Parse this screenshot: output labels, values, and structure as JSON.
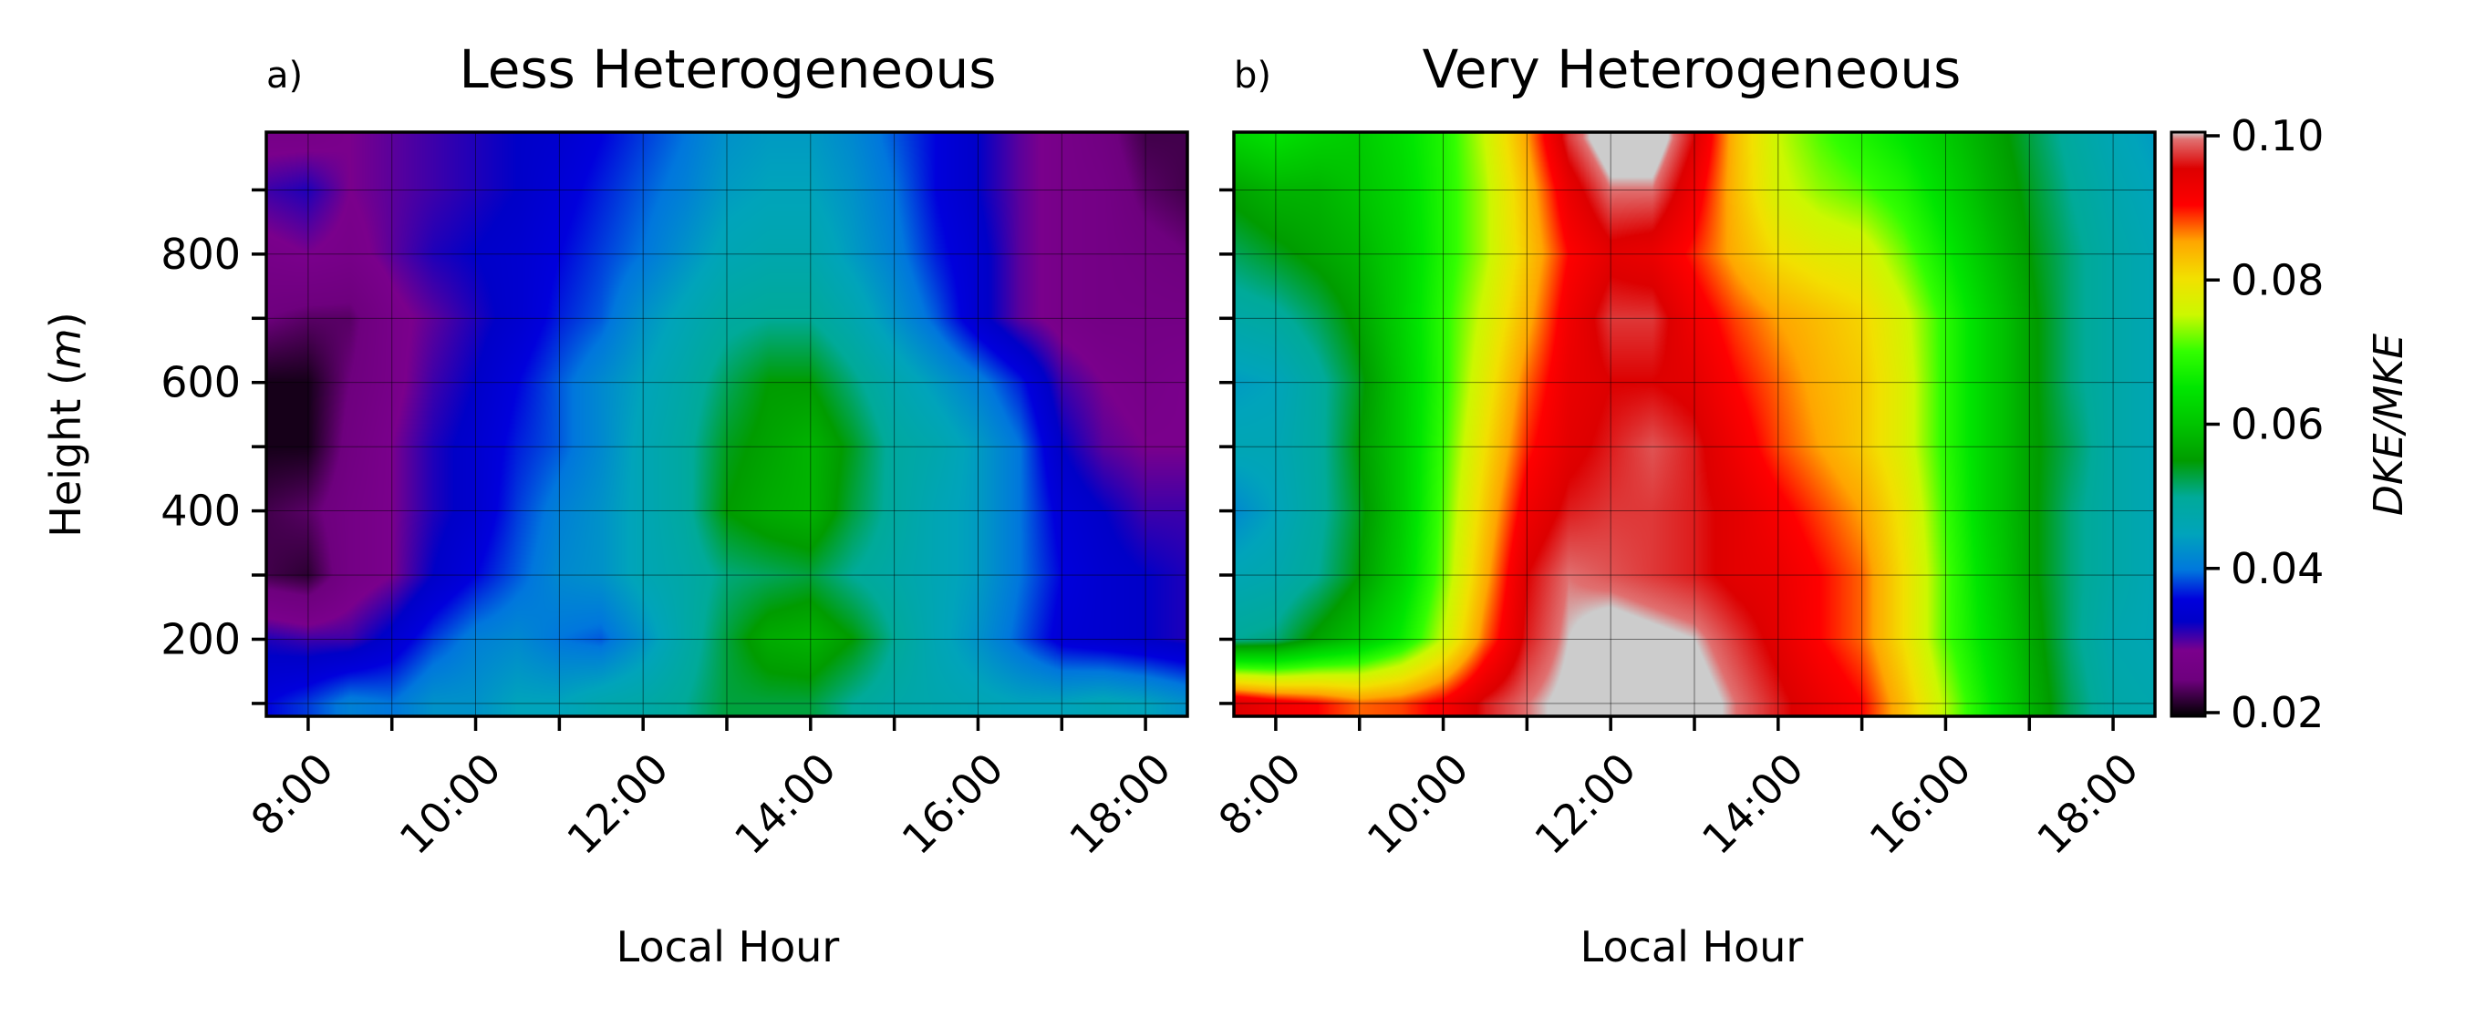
{
  "chart_data": [
    {
      "type": "heatmap",
      "panel_label": "a)",
      "title": "Less Heterogeneous",
      "xlabel": "Local Hour",
      "ylabel": "Height (m)",
      "ylabel_prefix": "Height (",
      "ylabel_unit": "m",
      "ylabel_suffix": ")",
      "x_ticks": [
        "8:00",
        "10:00",
        "12:00",
        "14:00",
        "16:00",
        "18:00"
      ],
      "x_tick_values": [
        8,
        10,
        12,
        14,
        16,
        18
      ],
      "x_minor_tick_values": [
        9,
        11,
        13,
        15,
        17
      ],
      "xlim": [
        7.5,
        18.5
      ],
      "y_ticks": [
        "200",
        "400",
        "600",
        "800"
      ],
      "y_tick_values": [
        200,
        400,
        600,
        800
      ],
      "y_minor_tick_values": [
        100,
        300,
        500,
        700,
        900
      ],
      "ylim": [
        80,
        990
      ],
      "grid": true,
      "x": [
        7.5,
        8,
        8.5,
        9,
        9.5,
        10,
        10.5,
        11,
        11.5,
        12,
        12.5,
        13,
        13.5,
        14,
        14.5,
        15,
        15.5,
        16,
        16.5,
        17,
        17.5,
        18,
        18.5
      ],
      "y": [
        100,
        200,
        300,
        400,
        500,
        600,
        700,
        800,
        900,
        980
      ],
      "z": [
        [
          0.036,
          0.038,
          0.041,
          0.04,
          0.043,
          0.043,
          0.045,
          0.045,
          0.047,
          0.048,
          0.05,
          0.053,
          0.053,
          0.053,
          0.05,
          0.048,
          0.047,
          0.046,
          0.045,
          0.045,
          0.046,
          0.045,
          0.043
        ],
        [
          0.032,
          0.031,
          0.031,
          0.034,
          0.038,
          0.041,
          0.042,
          0.04,
          0.039,
          0.043,
          0.048,
          0.053,
          0.057,
          0.058,
          0.055,
          0.05,
          0.046,
          0.043,
          0.039,
          0.035,
          0.034,
          0.033,
          0.032
        ],
        [
          0.023,
          0.022,
          0.027,
          0.029,
          0.033,
          0.036,
          0.039,
          0.042,
          0.043,
          0.046,
          0.048,
          0.051,
          0.052,
          0.053,
          0.05,
          0.048,
          0.046,
          0.044,
          0.04,
          0.036,
          0.034,
          0.033,
          0.032
        ],
        [
          0.023,
          0.024,
          0.027,
          0.029,
          0.032,
          0.034,
          0.038,
          0.041,
          0.043,
          0.046,
          0.049,
          0.055,
          0.057,
          0.058,
          0.053,
          0.049,
          0.046,
          0.044,
          0.04,
          0.035,
          0.033,
          0.031,
          0.031
        ],
        [
          0.021,
          0.021,
          0.026,
          0.029,
          0.032,
          0.034,
          0.037,
          0.039,
          0.042,
          0.046,
          0.049,
          0.054,
          0.056,
          0.058,
          0.054,
          0.049,
          0.047,
          0.044,
          0.04,
          0.033,
          0.03,
          0.029,
          0.029
        ],
        [
          0.021,
          0.021,
          0.025,
          0.028,
          0.031,
          0.033,
          0.036,
          0.039,
          0.042,
          0.045,
          0.048,
          0.052,
          0.055,
          0.055,
          0.051,
          0.047,
          0.044,
          0.041,
          0.037,
          0.031,
          0.029,
          0.028,
          0.029
        ],
        [
          0.025,
          0.024,
          0.024,
          0.028,
          0.03,
          0.032,
          0.034,
          0.037,
          0.039,
          0.043,
          0.046,
          0.049,
          0.05,
          0.05,
          0.047,
          0.043,
          0.039,
          0.034,
          0.03,
          0.028,
          0.027,
          0.027,
          0.027
        ],
        [
          0.028,
          0.029,
          0.028,
          0.03,
          0.032,
          0.033,
          0.034,
          0.036,
          0.038,
          0.04,
          0.043,
          0.046,
          0.047,
          0.047,
          0.044,
          0.041,
          0.037,
          0.034,
          0.03,
          0.028,
          0.027,
          0.026,
          0.025
        ],
        [
          0.031,
          0.032,
          0.029,
          0.03,
          0.031,
          0.032,
          0.033,
          0.035,
          0.037,
          0.039,
          0.041,
          0.044,
          0.045,
          0.045,
          0.043,
          0.04,
          0.036,
          0.033,
          0.03,
          0.028,
          0.027,
          0.024,
          0.023
        ],
        [
          0.028,
          0.028,
          0.029,
          0.03,
          0.031,
          0.032,
          0.033,
          0.034,
          0.036,
          0.038,
          0.04,
          0.043,
          0.044,
          0.044,
          0.042,
          0.039,
          0.036,
          0.033,
          0.03,
          0.028,
          0.026,
          0.023,
          0.023
        ]
      ]
    },
    {
      "type": "heatmap",
      "panel_label": "b)",
      "title": "Very Heterogeneous",
      "xlabel": "Local Hour",
      "ylabel": "",
      "x_ticks": [
        "8:00",
        "10:00",
        "12:00",
        "14:00",
        "16:00",
        "18:00"
      ],
      "x_tick_values": [
        8,
        10,
        12,
        14,
        16,
        18
      ],
      "x_minor_tick_values": [
        9,
        11,
        13,
        15,
        17
      ],
      "xlim": [
        7.5,
        18.5
      ],
      "y_tick_values": [
        200,
        400,
        600,
        800
      ],
      "y_minor_tick_values": [
        100,
        300,
        500,
        700,
        900
      ],
      "ylim": [
        80,
        990
      ],
      "grid": true,
      "x": [
        7.5,
        8,
        8.5,
        9,
        9.5,
        10,
        10.5,
        11,
        11.5,
        12,
        12.5,
        13,
        13.5,
        14,
        14.5,
        15,
        15.5,
        16,
        16.5,
        17,
        17.5,
        18,
        18.5
      ],
      "y": [
        100,
        200,
        300,
        400,
        500,
        600,
        700,
        800,
        900,
        980
      ],
      "z": [
        [
          0.095,
          0.092,
          0.09,
          0.087,
          0.088,
          0.091,
          0.096,
          0.099,
          0.101,
          0.103,
          0.103,
          0.102,
          0.099,
          0.096,
          0.093,
          0.09,
          0.083,
          0.074,
          0.066,
          0.058,
          0.052,
          0.048,
          0.047
        ],
        [
          0.05,
          0.051,
          0.056,
          0.06,
          0.066,
          0.075,
          0.087,
          0.096,
          0.1,
          0.102,
          0.101,
          0.1,
          0.097,
          0.094,
          0.09,
          0.087,
          0.08,
          0.071,
          0.064,
          0.057,
          0.051,
          0.047,
          0.046
        ],
        [
          0.046,
          0.047,
          0.05,
          0.055,
          0.062,
          0.072,
          0.084,
          0.095,
          0.099,
          0.098,
          0.097,
          0.096,
          0.094,
          0.093,
          0.09,
          0.087,
          0.08,
          0.071,
          0.063,
          0.056,
          0.051,
          0.048,
          0.046
        ],
        [
          0.042,
          0.045,
          0.049,
          0.054,
          0.061,
          0.071,
          0.082,
          0.092,
          0.096,
          0.097,
          0.097,
          0.096,
          0.094,
          0.091,
          0.088,
          0.085,
          0.079,
          0.07,
          0.062,
          0.056,
          0.051,
          0.048,
          0.046
        ],
        [
          0.046,
          0.046,
          0.049,
          0.055,
          0.061,
          0.07,
          0.08,
          0.089,
          0.094,
          0.096,
          0.098,
          0.096,
          0.092,
          0.088,
          0.085,
          0.082,
          0.077,
          0.069,
          0.062,
          0.056,
          0.052,
          0.048,
          0.046
        ],
        [
          0.044,
          0.045,
          0.049,
          0.054,
          0.061,
          0.069,
          0.078,
          0.087,
          0.093,
          0.095,
          0.095,
          0.094,
          0.09,
          0.087,
          0.084,
          0.082,
          0.077,
          0.069,
          0.062,
          0.056,
          0.051,
          0.048,
          0.046
        ],
        [
          0.048,
          0.049,
          0.052,
          0.056,
          0.062,
          0.069,
          0.076,
          0.084,
          0.092,
          0.097,
          0.097,
          0.092,
          0.088,
          0.085,
          0.083,
          0.081,
          0.076,
          0.069,
          0.062,
          0.056,
          0.051,
          0.048,
          0.046
        ],
        [
          0.052,
          0.054,
          0.056,
          0.058,
          0.062,
          0.068,
          0.074,
          0.082,
          0.09,
          0.094,
          0.093,
          0.089,
          0.084,
          0.08,
          0.078,
          0.077,
          0.072,
          0.066,
          0.06,
          0.055,
          0.051,
          0.048,
          0.046
        ],
        [
          0.056,
          0.058,
          0.058,
          0.06,
          0.063,
          0.068,
          0.074,
          0.083,
          0.093,
          0.099,
          0.099,
          0.092,
          0.083,
          0.076,
          0.073,
          0.071,
          0.068,
          0.063,
          0.058,
          0.054,
          0.05,
          0.047,
          0.045
        ],
        [
          0.062,
          0.064,
          0.062,
          0.061,
          0.064,
          0.068,
          0.075,
          0.085,
          0.097,
          0.103,
          0.103,
          0.095,
          0.083,
          0.075,
          0.071,
          0.068,
          0.065,
          0.061,
          0.057,
          0.053,
          0.049,
          0.046,
          0.044
        ]
      ]
    }
  ],
  "colorbar": {
    "label": "DKE/MKE",
    "vmin": 0.02,
    "vmax": 0.1,
    "tick_labels": [
      "0.02",
      "0.04",
      "0.06",
      "0.08",
      "0.10"
    ],
    "tick_values": [
      0.02,
      0.04,
      0.06,
      0.08,
      0.1
    ],
    "colormap": "nipy_spectral",
    "stops": [
      {
        "v": 0.02,
        "color": "#000000"
      },
      {
        "v": 0.025,
        "color": "#6e007e"
      },
      {
        "v": 0.029,
        "color": "#7a008c"
      },
      {
        "v": 0.033,
        "color": "#0000c8"
      },
      {
        "v": 0.036,
        "color": "#0000dc"
      },
      {
        "v": 0.04,
        "color": "#0077dd"
      },
      {
        "v": 0.045,
        "color": "#00a4bb"
      },
      {
        "v": 0.05,
        "color": "#00aa99"
      },
      {
        "v": 0.055,
        "color": "#009c00"
      },
      {
        "v": 0.06,
        "color": "#00c400"
      },
      {
        "v": 0.065,
        "color": "#00e600"
      },
      {
        "v": 0.07,
        "color": "#33ff00"
      },
      {
        "v": 0.075,
        "color": "#ccf800"
      },
      {
        "v": 0.08,
        "color": "#f2e000"
      },
      {
        "v": 0.085,
        "color": "#ffa600"
      },
      {
        "v": 0.09,
        "color": "#ff0000"
      },
      {
        "v": 0.095,
        "color": "#dd0000"
      },
      {
        "v": 0.099,
        "color": "#e07070"
      },
      {
        "v": 0.1,
        "color": "#cccccc"
      }
    ]
  }
}
